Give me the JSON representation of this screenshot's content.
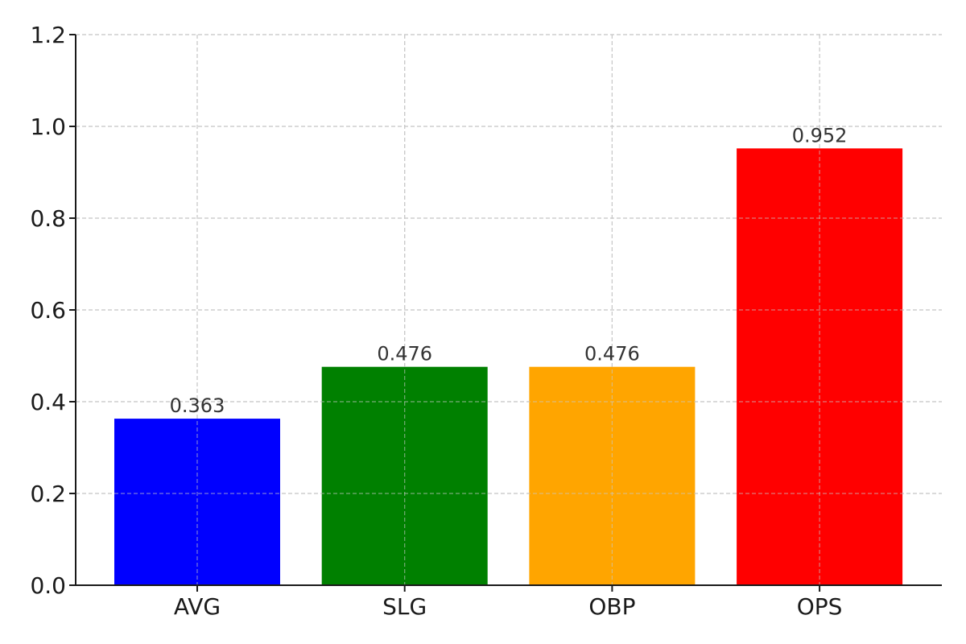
{
  "chart_data": {
    "type": "bar",
    "categories": [
      "AVG",
      "SLG",
      "OBP",
      "OPS"
    ],
    "values": [
      0.363,
      0.476,
      0.476,
      0.952
    ],
    "value_labels": [
      "0.363",
      "0.476",
      "0.476",
      "0.952"
    ],
    "colors": [
      "#0000ff",
      "#008000",
      "#ffa500",
      "#ff0000"
    ],
    "title": "",
    "xlabel": "",
    "ylabel": "",
    "ylim": [
      0,
      1.2
    ],
    "yticks": [
      0.0,
      0.2,
      0.4,
      0.6,
      0.8,
      1.0,
      1.2
    ],
    "ytick_labels": [
      "0.0",
      "0.2",
      "0.4",
      "0.6",
      "0.8",
      "1.0",
      "1.2"
    ],
    "grid": true,
    "legend": "none"
  }
}
